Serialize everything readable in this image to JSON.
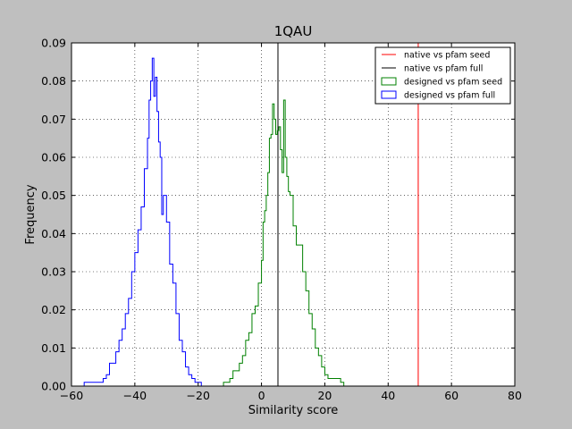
{
  "chart_data": {
    "type": "histogram",
    "title": "1QAU",
    "xlabel": "Similarity score",
    "ylabel": "Frequency",
    "xlim": [
      -60,
      80
    ],
    "ylim": [
      0,
      0.09
    ],
    "x_ticks": [
      -60,
      -40,
      -20,
      0,
      20,
      40,
      60,
      80
    ],
    "x_tick_labels": [
      "−60",
      "−40",
      "−20",
      "0",
      "20",
      "40",
      "60",
      "80"
    ],
    "y_ticks": [
      0,
      0.01,
      0.02,
      0.03,
      0.04,
      0.05,
      0.06,
      0.07,
      0.08,
      0.09
    ],
    "y_tick_labels": [
      "0.00",
      "0.01",
      "0.02",
      "0.03",
      "0.04",
      "0.05",
      "0.06",
      "0.07",
      "0.08",
      "0.09"
    ],
    "grid": true,
    "legend_position": "top-right",
    "series": [
      {
        "name": "native vs pfam seed",
        "kind": "vline",
        "color": "#ff0000",
        "x": 49.5
      },
      {
        "name": "native vs pfam full",
        "kind": "vline",
        "color": "#000000",
        "x": 5.2
      },
      {
        "name": "designed vs pfam seed",
        "kind": "step",
        "color": "#008000",
        "points": [
          [
            -13,
            0.0
          ],
          [
            -12,
            0.001
          ],
          [
            -10,
            0.002
          ],
          [
            -9,
            0.004
          ],
          [
            -8,
            0.004
          ],
          [
            -7,
            0.006
          ],
          [
            -6,
            0.008
          ],
          [
            -5,
            0.012
          ],
          [
            -4,
            0.014
          ],
          [
            -3,
            0.019
          ],
          [
            -2,
            0.021
          ],
          [
            -1,
            0.027
          ],
          [
            0,
            0.033
          ],
          [
            0.5,
            0.043
          ],
          [
            1,
            0.046
          ],
          [
            1.5,
            0.05
          ],
          [
            2,
            0.056
          ],
          [
            2.5,
            0.065
          ],
          [
            3,
            0.066
          ],
          [
            3.5,
            0.074
          ],
          [
            4,
            0.07
          ],
          [
            4.5,
            0.066
          ],
          [
            5,
            0.067
          ],
          [
            5.5,
            0.068
          ],
          [
            6,
            0.062
          ],
          [
            6.5,
            0.056
          ],
          [
            7,
            0.075
          ],
          [
            7.5,
            0.06
          ],
          [
            8,
            0.055
          ],
          [
            8.5,
            0.051
          ],
          [
            9,
            0.05
          ],
          [
            10,
            0.042
          ],
          [
            11,
            0.037
          ],
          [
            12,
            0.037
          ],
          [
            13,
            0.03
          ],
          [
            14,
            0.025
          ],
          [
            15,
            0.019
          ],
          [
            16,
            0.015
          ],
          [
            17,
            0.01
          ],
          [
            18,
            0.008
          ],
          [
            19,
            0.005
          ],
          [
            20,
            0.003
          ],
          [
            21,
            0.002
          ],
          [
            23,
            0.002
          ],
          [
            25,
            0.001
          ],
          [
            26,
            0.0
          ]
        ]
      },
      {
        "name": "designed vs pfam full",
        "kind": "step",
        "color": "#0000ff",
        "points": [
          [
            -58,
            0.0
          ],
          [
            -56,
            0.001
          ],
          [
            -52,
            0.001
          ],
          [
            -50,
            0.002
          ],
          [
            -49,
            0.003
          ],
          [
            -48,
            0.006
          ],
          [
            -47,
            0.006
          ],
          [
            -46,
            0.009
          ],
          [
            -45,
            0.012
          ],
          [
            -44,
            0.015
          ],
          [
            -43,
            0.019
          ],
          [
            -42,
            0.023
          ],
          [
            -41,
            0.03
          ],
          [
            -40,
            0.035
          ],
          [
            -39,
            0.041
          ],
          [
            -38,
            0.047
          ],
          [
            -37,
            0.057
          ],
          [
            -36,
            0.065
          ],
          [
            -35.5,
            0.075
          ],
          [
            -35,
            0.08
          ],
          [
            -34.5,
            0.086
          ],
          [
            -34,
            0.076
          ],
          [
            -33.5,
            0.081
          ],
          [
            -33,
            0.072
          ],
          [
            -32.5,
            0.064
          ],
          [
            -32,
            0.06
          ],
          [
            -31.5,
            0.045
          ],
          [
            -31,
            0.05
          ],
          [
            -30,
            0.043
          ],
          [
            -29,
            0.032
          ],
          [
            -28,
            0.027
          ],
          [
            -27,
            0.019
          ],
          [
            -26,
            0.012
          ],
          [
            -25,
            0.009
          ],
          [
            -24,
            0.005
          ],
          [
            -23,
            0.003
          ],
          [
            -22,
            0.002
          ],
          [
            -21,
            0.001
          ],
          [
            -19,
            0.0
          ]
        ]
      }
    ]
  }
}
